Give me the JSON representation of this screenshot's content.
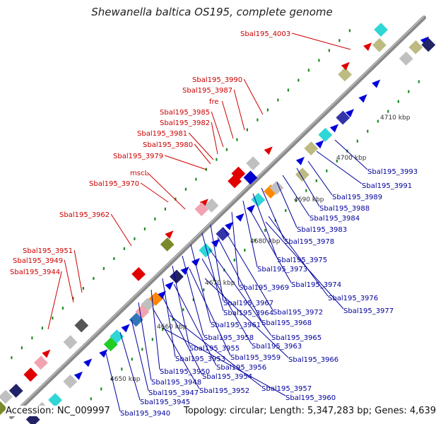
{
  "title": "Shewanella baltica OS195, complete genome",
  "accession_label": "Accession: NC_009997",
  "summary_label": "Topology: circular; Length: 5,347,283 bp; Genes: 4,639",
  "colors": {
    "backbone": "#8a8a8a",
    "forward_label": "#cc0000",
    "reverse_label": "#00009c",
    "tick_dots": "#1e8a1e"
  },
  "scale_ticks": [
    "4650 kbp",
    "4660 kbp",
    "4670 kbp",
    "4680 kbp",
    "4690 kbp",
    "4700 kbp",
    "4710 kbp"
  ],
  "forward_labels": [
    "Sbal195_4003",
    "Sbal195_3990",
    "Sbal195_3987",
    "fre",
    "Sbal195_3985",
    "Sbal195_3982",
    "Sbal195_3981",
    "Sbal195_3980",
    "Sbal195_3979",
    "mscL",
    "Sbal195_3970",
    "Sbal195_3962",
    "Sbal195_3951",
    "Sbal195_3949",
    "Sbal195_3944"
  ],
  "reverse_labels": [
    "Sbal195_3993",
    "Sbal195_3991",
    "Sbal195_3989",
    "Sbal195_3988",
    "Sbal195_3984",
    "Sbal195_3983",
    "Sbal195_3978",
    "Sbal195_3975",
    "Sbal195_3973",
    "Sbal195_3974",
    "Sbal195_3969",
    "Sbal195_3976",
    "Sbal195_3977",
    "Sbal195_3967",
    "Sbal195_3972",
    "Sbal195_3964",
    "Sbal195_3968",
    "Sbal195_3961",
    "Sbal195_3965",
    "Sbal195_3958",
    "Sbal195_3963",
    "Sbal195_3955",
    "Sbal195_3959",
    "Sbal195_3966",
    "Sbal195_3953",
    "Sbal195_3956",
    "Sbal195_3950",
    "Sbal195_3954",
    "Sbal195_3948",
    "Sbal195_3952",
    "Sbal195_3957",
    "Sbal195_3947",
    "Sbal195_3960",
    "Sbal195_3945",
    "Sbal195_3940"
  ]
}
